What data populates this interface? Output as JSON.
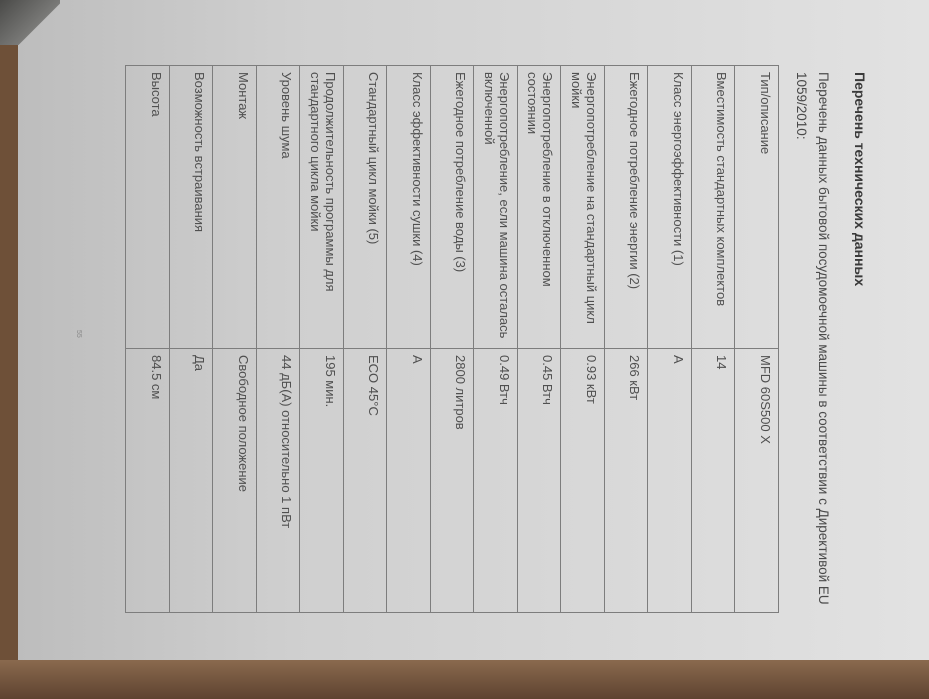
{
  "document": {
    "title": "Перечень технических данных",
    "intro": "Перечень данных бытовой посудомоечной машины в соответствии с Директивой EU 1059/2010:",
    "rows": [
      {
        "param": "Тип/описание",
        "value": "MFD 60S500 X"
      },
      {
        "param": "Вместимость стандартных комплектов",
        "value": "14"
      },
      {
        "param": "Класс энергоэффективности (1)",
        "value": "A"
      },
      {
        "param": "Ежегодное потребление энергии (2)",
        "value": "266 кВт"
      },
      {
        "param": "Энергопотребление на стандартный цикл мойки",
        "value": "0.93 кВт"
      },
      {
        "param": "Энергопотребление в отключенном состоянии",
        "value": "0.45 Втч"
      },
      {
        "param": "Энергопотребление, если машина осталась включенной",
        "value": "0.49 Втч"
      },
      {
        "param": "Ежегодное потребление воды (3)",
        "value": "2800 литров"
      },
      {
        "param": "Класс эффективности сушки (4)",
        "value": "A"
      },
      {
        "param": "Стандартный цикл мойки (5)",
        "value": "ECO 45°C"
      },
      {
        "param": "Продолжительность программы для стандартного цикла мойки",
        "value": "195 мин."
      },
      {
        "param": "Уровень шума",
        "value": "44 дБ(А) относительно 1 пВт"
      },
      {
        "param": "Монтаж",
        "value": "Свободное положение"
      },
      {
        "param": "Возможность встраивания",
        "value": "Да"
      },
      {
        "param": "Высота",
        "value": "84.5 см"
      }
    ],
    "page_number": "55"
  }
}
